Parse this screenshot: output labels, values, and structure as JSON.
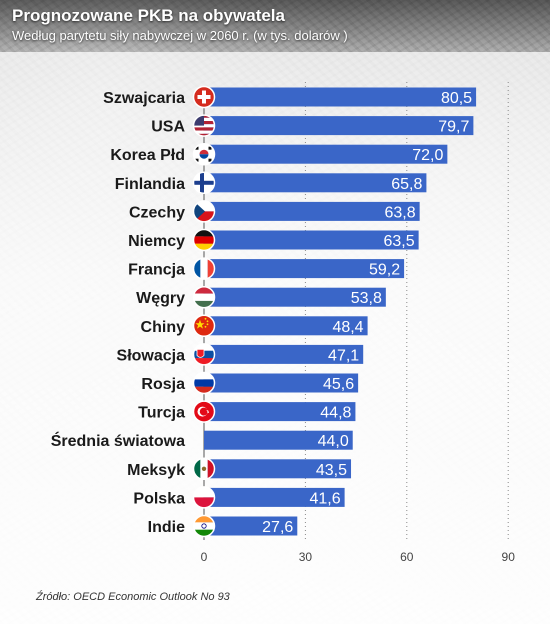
{
  "header": {
    "title": "Prognozowane PKB na obywatela",
    "subtitle": "Według parytetu siły nabywczej w 2060 r. (w tys. dolarów )"
  },
  "source": "Źródło: OECD Economic Outlook No 93",
  "colors": {
    "bar": "#3a66c8",
    "bar_label": "#ffffff",
    "country_label": "#1a1a1a",
    "grid": "#8a8a8a",
    "tick": "#444444"
  },
  "chart_data": {
    "type": "bar",
    "orientation": "horizontal",
    "categories": [
      "Szwajcaria",
      "USA",
      "Korea Płd",
      "Finlandia",
      "Czechy",
      "Niemcy",
      "Francja",
      "Węgry",
      "Chiny",
      "Słowacja",
      "Rosja",
      "Turcja",
      "Średnia światowa",
      "Meksyk",
      "Polska",
      "Indie"
    ],
    "values": [
      80.5,
      79.7,
      72.0,
      65.8,
      63.8,
      63.5,
      59.2,
      53.8,
      48.4,
      47.1,
      45.6,
      44.8,
      44.0,
      43.5,
      41.6,
      27.6
    ],
    "value_labels": [
      "80,5",
      "79,7",
      "72,0",
      "65,8",
      "63,8",
      "63,5",
      "59,2",
      "53,8",
      "48,4",
      "47,1",
      "45,6",
      "44,8",
      "44,0",
      "43,5",
      "41,6",
      "27,6"
    ],
    "flags": [
      "switzerland-flag-icon",
      "usa-flag-icon",
      "south-korea-flag-icon",
      "finland-flag-icon",
      "czech-flag-icon",
      "germany-flag-icon",
      "france-flag-icon",
      "hungary-flag-icon",
      "china-flag-icon",
      "slovakia-flag-icon",
      "russia-flag-icon",
      "turkey-flag-icon",
      "",
      "mexico-flag-icon",
      "poland-flag-icon",
      "india-flag-icon"
    ],
    "xlim": [
      0,
      90
    ],
    "xticks": [
      0,
      30,
      60,
      90
    ],
    "grid": true,
    "grid_style": "dotted vertical"
  }
}
